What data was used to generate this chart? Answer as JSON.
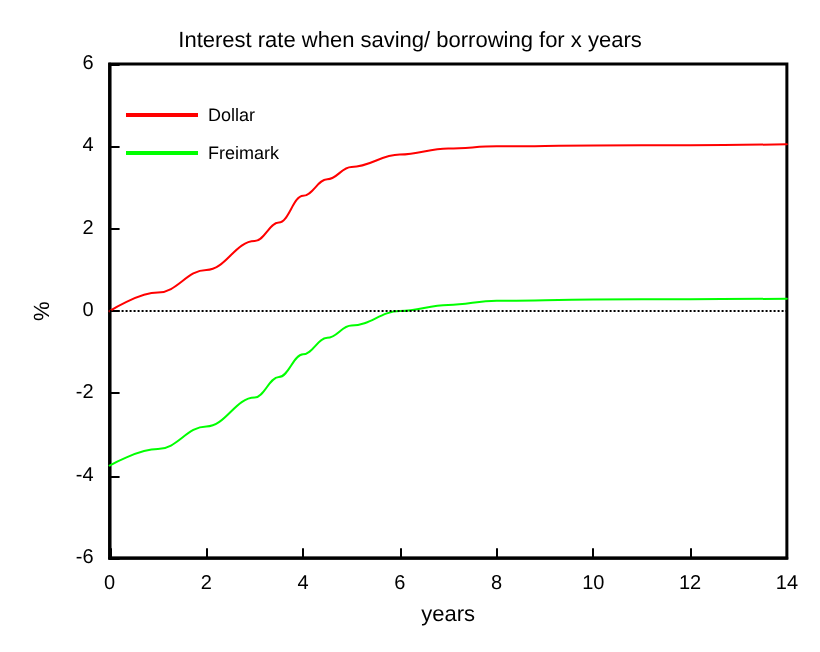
{
  "chart_data": {
    "type": "line",
    "title": "Interest rate when saving/ borrowing for x years",
    "xlabel": "years",
    "ylabel": "%",
    "xlim": [
      0,
      14
    ],
    "xticks": [
      0,
      2,
      4,
      6,
      8,
      10,
      12,
      14
    ],
    "ylim": [
      -6,
      6
    ],
    "yticks": [
      -6,
      -4,
      -2,
      0,
      2,
      4,
      6
    ],
    "grid": false,
    "legend": "top left",
    "marker": "none",
    "line_style": "solid",
    "ref_lines": [
      {
        "axis": "y",
        "value": 0,
        "line_style": "dotted",
        "color": "#000000"
      }
    ],
    "series": [
      {
        "name": "Dollar",
        "color": "#ff0000",
        "x": [
          0,
          1,
          2,
          3,
          3.5,
          4,
          4.5,
          5,
          6,
          7,
          8,
          10,
          12,
          14
        ],
        "values": [
          0,
          0.45,
          1.0,
          1.7,
          2.15,
          2.8,
          3.2,
          3.5,
          3.8,
          3.95,
          4.0,
          4.02,
          4.03,
          4.05
        ]
      },
      {
        "name": "Freimark",
        "color": "#00ff00",
        "x": [
          0,
          1,
          2,
          3,
          3.5,
          4,
          4.5,
          5,
          6,
          7,
          8,
          10,
          12,
          14
        ],
        "values": [
          -3.75,
          -3.35,
          -2.8,
          -2.1,
          -1.6,
          -1.05,
          -0.65,
          -0.35,
          0.0,
          0.15,
          0.25,
          0.28,
          0.29,
          0.3
        ]
      }
    ]
  }
}
